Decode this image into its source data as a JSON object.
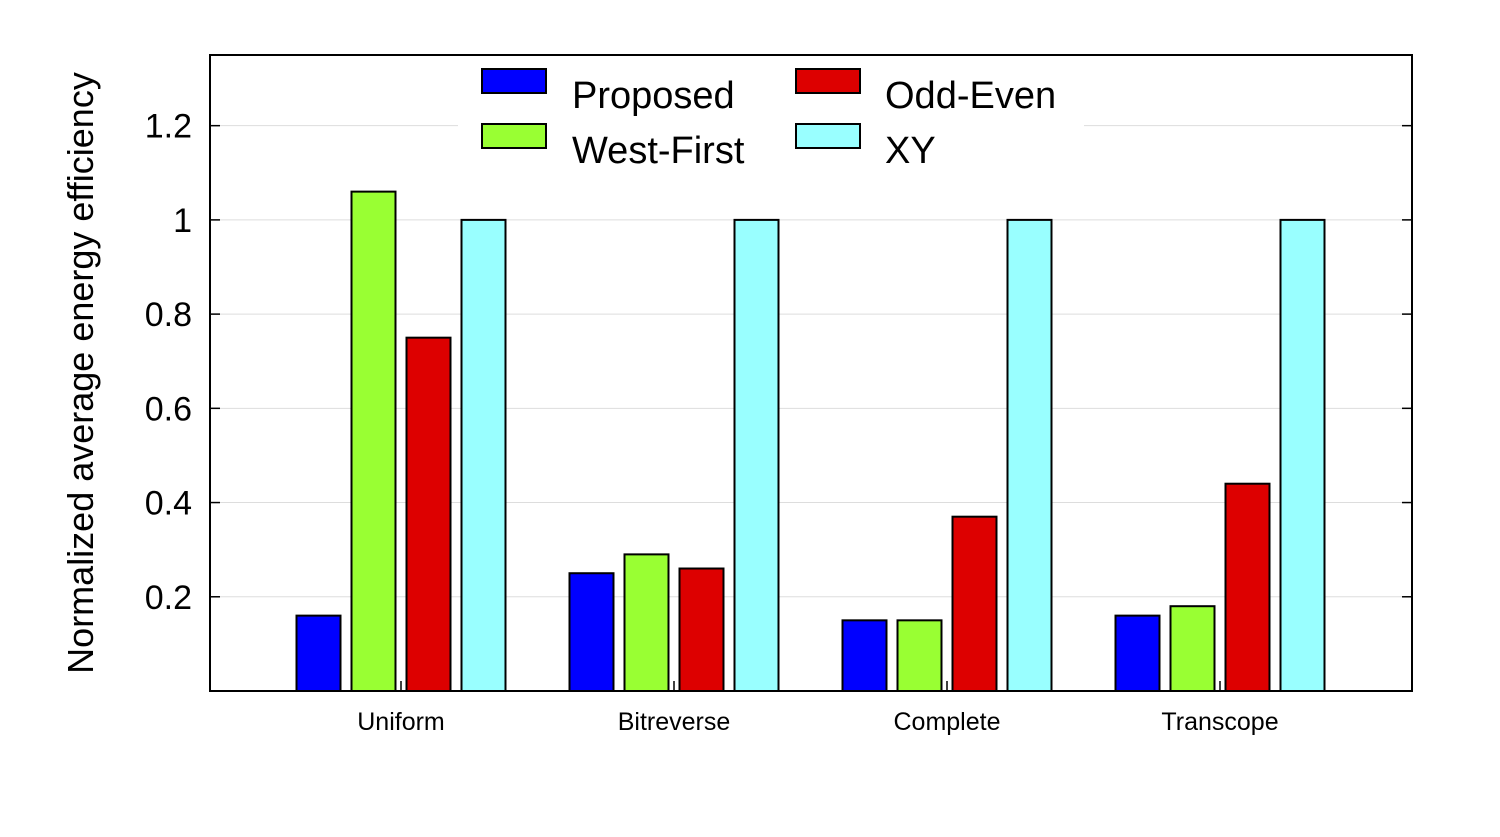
{
  "chart_data": {
    "type": "bar",
    "title": "",
    "xlabel": "",
    "ylabel": "Normalized average energy efficiency",
    "categories": [
      "Uniform",
      "Bitreverse",
      "Complete",
      "Transcope"
    ],
    "series": [
      {
        "name": "Proposed",
        "color": "#0000ff",
        "values": [
          0.16,
          0.25,
          0.15,
          0.16
        ]
      },
      {
        "name": "West-First",
        "color": "#99ff33",
        "values": [
          1.06,
          0.29,
          0.15,
          0.18
        ]
      },
      {
        "name": "Odd-Even",
        "color": "#dd0000",
        "values": [
          0.75,
          0.26,
          0.37,
          0.44
        ]
      },
      {
        "name": "XY",
        "color": "#99ffff",
        "values": [
          1.0,
          1.0,
          1.0,
          1.0
        ]
      }
    ],
    "ylim": [
      0,
      1.35
    ],
    "yticks": [
      0.2,
      0.4,
      0.6,
      0.8,
      1,
      1.2
    ],
    "ytick_labels": [
      "0.2",
      "0.4",
      "0.6",
      "0.8",
      "1",
      "1.2"
    ],
    "grid": true,
    "legend_position": "top-center"
  }
}
